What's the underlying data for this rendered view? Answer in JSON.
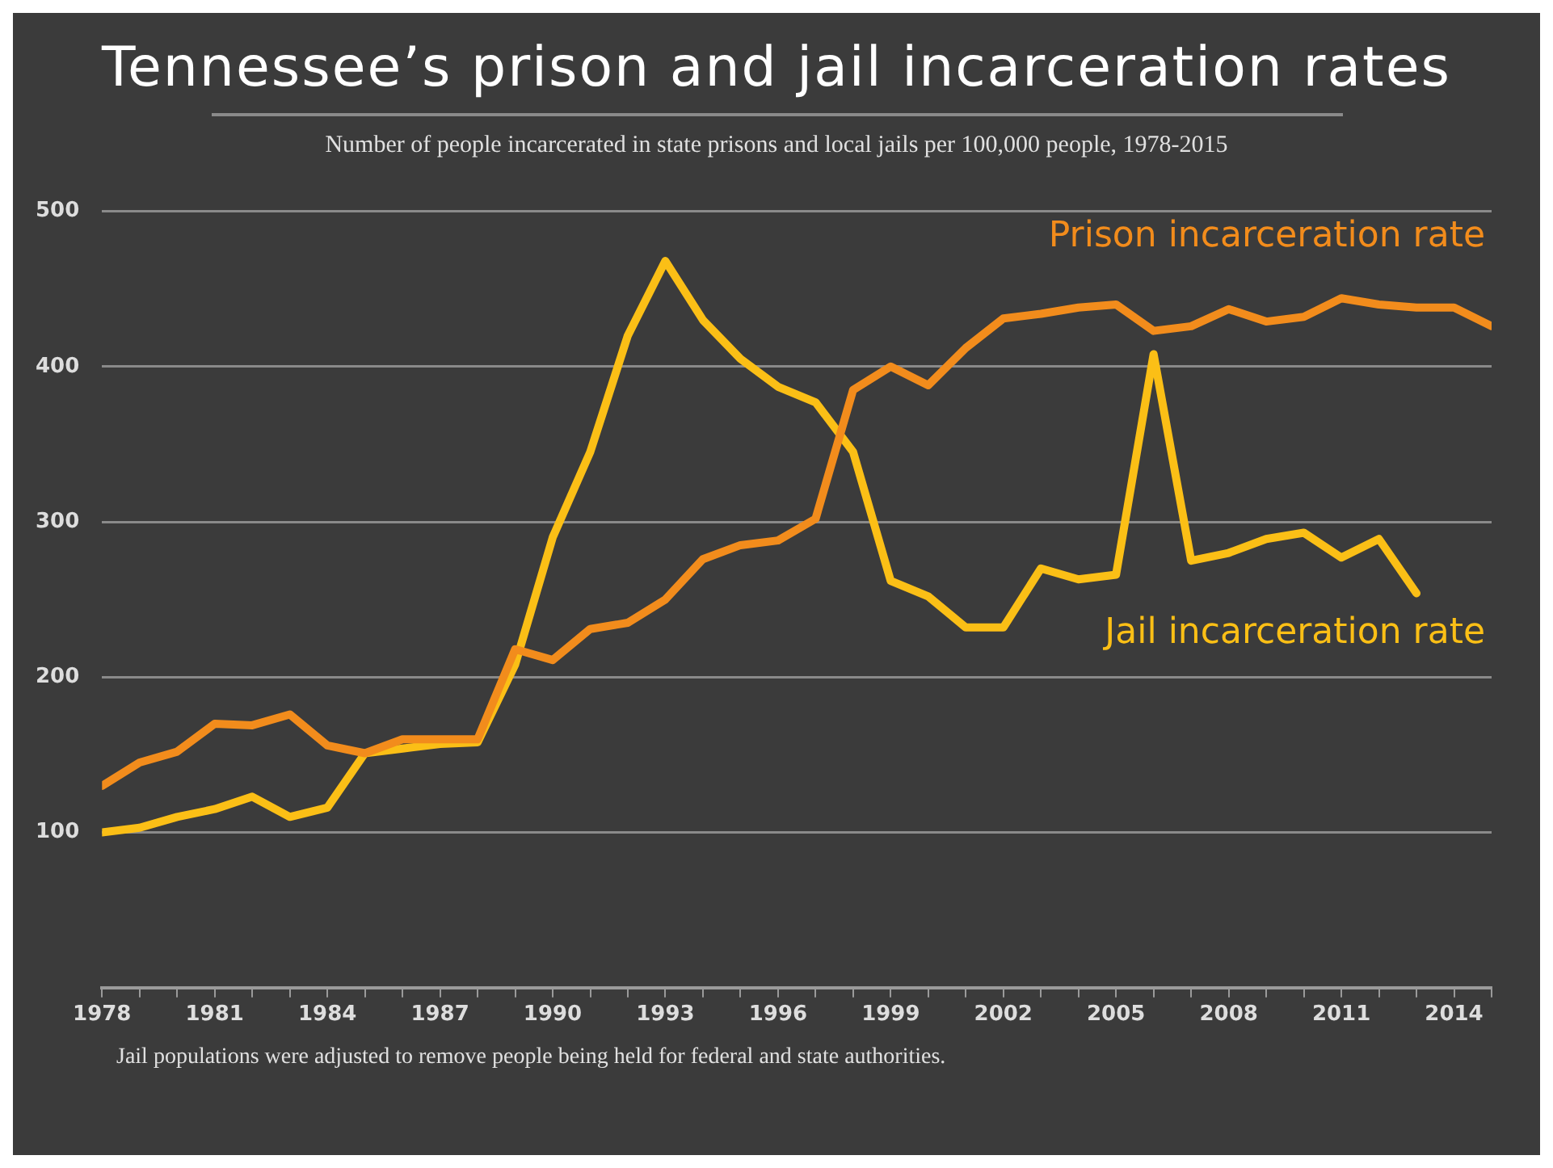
{
  "chart_data": {
    "type": "line",
    "title": "Tennessee’s prison and jail incarceration rates",
    "subtitle": "Number of people incarcerated in state prisons and local jails per 100,000 people, 1978-2015",
    "x": [
      1978,
      1979,
      1980,
      1981,
      1982,
      1983,
      1984,
      1985,
      1986,
      1987,
      1988,
      1989,
      1990,
      1991,
      1992,
      1993,
      1994,
      1995,
      1996,
      1997,
      1998,
      1999,
      2000,
      2001,
      2002,
      2003,
      2004,
      2005,
      2006,
      2007,
      2008,
      2009,
      2010,
      2011,
      2012,
      2013,
      2014,
      2015
    ],
    "series": [
      {
        "name": "Prison incarceration rate",
        "color": "#f28c1c",
        "values": [
          130,
          145,
          152,
          170,
          169,
          176,
          156,
          151,
          160,
          160,
          160,
          218,
          211,
          231,
          235,
          250,
          276,
          285,
          288,
          302,
          385,
          400,
          388,
          412,
          431,
          434,
          438,
          440,
          423,
          426,
          437,
          429,
          432,
          444,
          440,
          438,
          438,
          426
        ]
      },
      {
        "name": "Jail incarceration rate",
        "color": "#fbbf16",
        "values": [
          100,
          103,
          110,
          115,
          123,
          110,
          116,
          151,
          154,
          157,
          158,
          208,
          290,
          345,
          420,
          468,
          430,
          405,
          387,
          377,
          345,
          262,
          252,
          232,
          232,
          270,
          263,
          266,
          408,
          275,
          280,
          289,
          293,
          277,
          289,
          254,
          null,
          null
        ]
      }
    ],
    "xlim": [
      1978,
      2015
    ],
    "xticks": [
      1978,
      {
        "value": 1979,
        "label": null
      },
      {
        "value": 1980,
        "label": null
      },
      1981,
      {
        "value": 1982,
        "label": null
      },
      {
        "value": 1983,
        "label": null
      },
      1984,
      {
        "value": 1985,
        "label": null
      },
      {
        "value": 1986,
        "label": null
      },
      1987,
      {
        "value": 1988,
        "label": null
      },
      {
        "value": 1989,
        "label": null
      },
      1990,
      {
        "value": 1991,
        "label": null
      },
      {
        "value": 1992,
        "label": null
      },
      1993,
      {
        "value": 1994,
        "label": null
      },
      {
        "value": 1995,
        "label": null
      },
      1996,
      {
        "value": 1997,
        "label": null
      },
      {
        "value": 1998,
        "label": null
      },
      1999,
      {
        "value": 2000,
        "label": null
      },
      {
        "value": 2001,
        "label": null
      },
      2002,
      {
        "value": 2003,
        "label": null
      },
      {
        "value": 2004,
        "label": null
      },
      2005,
      {
        "value": 2006,
        "label": null
      },
      {
        "value": 2007,
        "label": null
      },
      2008,
      {
        "value": 2009,
        "label": null
      },
      {
        "value": 2010,
        "label": null
      },
      2011,
      {
        "value": 2012,
        "label": null
      },
      {
        "value": 2013,
        "label": null
      },
      2014,
      {
        "value": 2015,
        "label": null
      }
    ],
    "ylim": [
      0,
      500
    ],
    "yticks": [
      {
        "value": 0,
        "label": null
      },
      100,
      200,
      300,
      400,
      500
    ],
    "grid": "y",
    "legend": false,
    "marker": "none",
    "line_style": "solid",
    "annotations": [
      "Jail populations were adjusted to remove people being held for federal and state authorities."
    ]
  }
}
